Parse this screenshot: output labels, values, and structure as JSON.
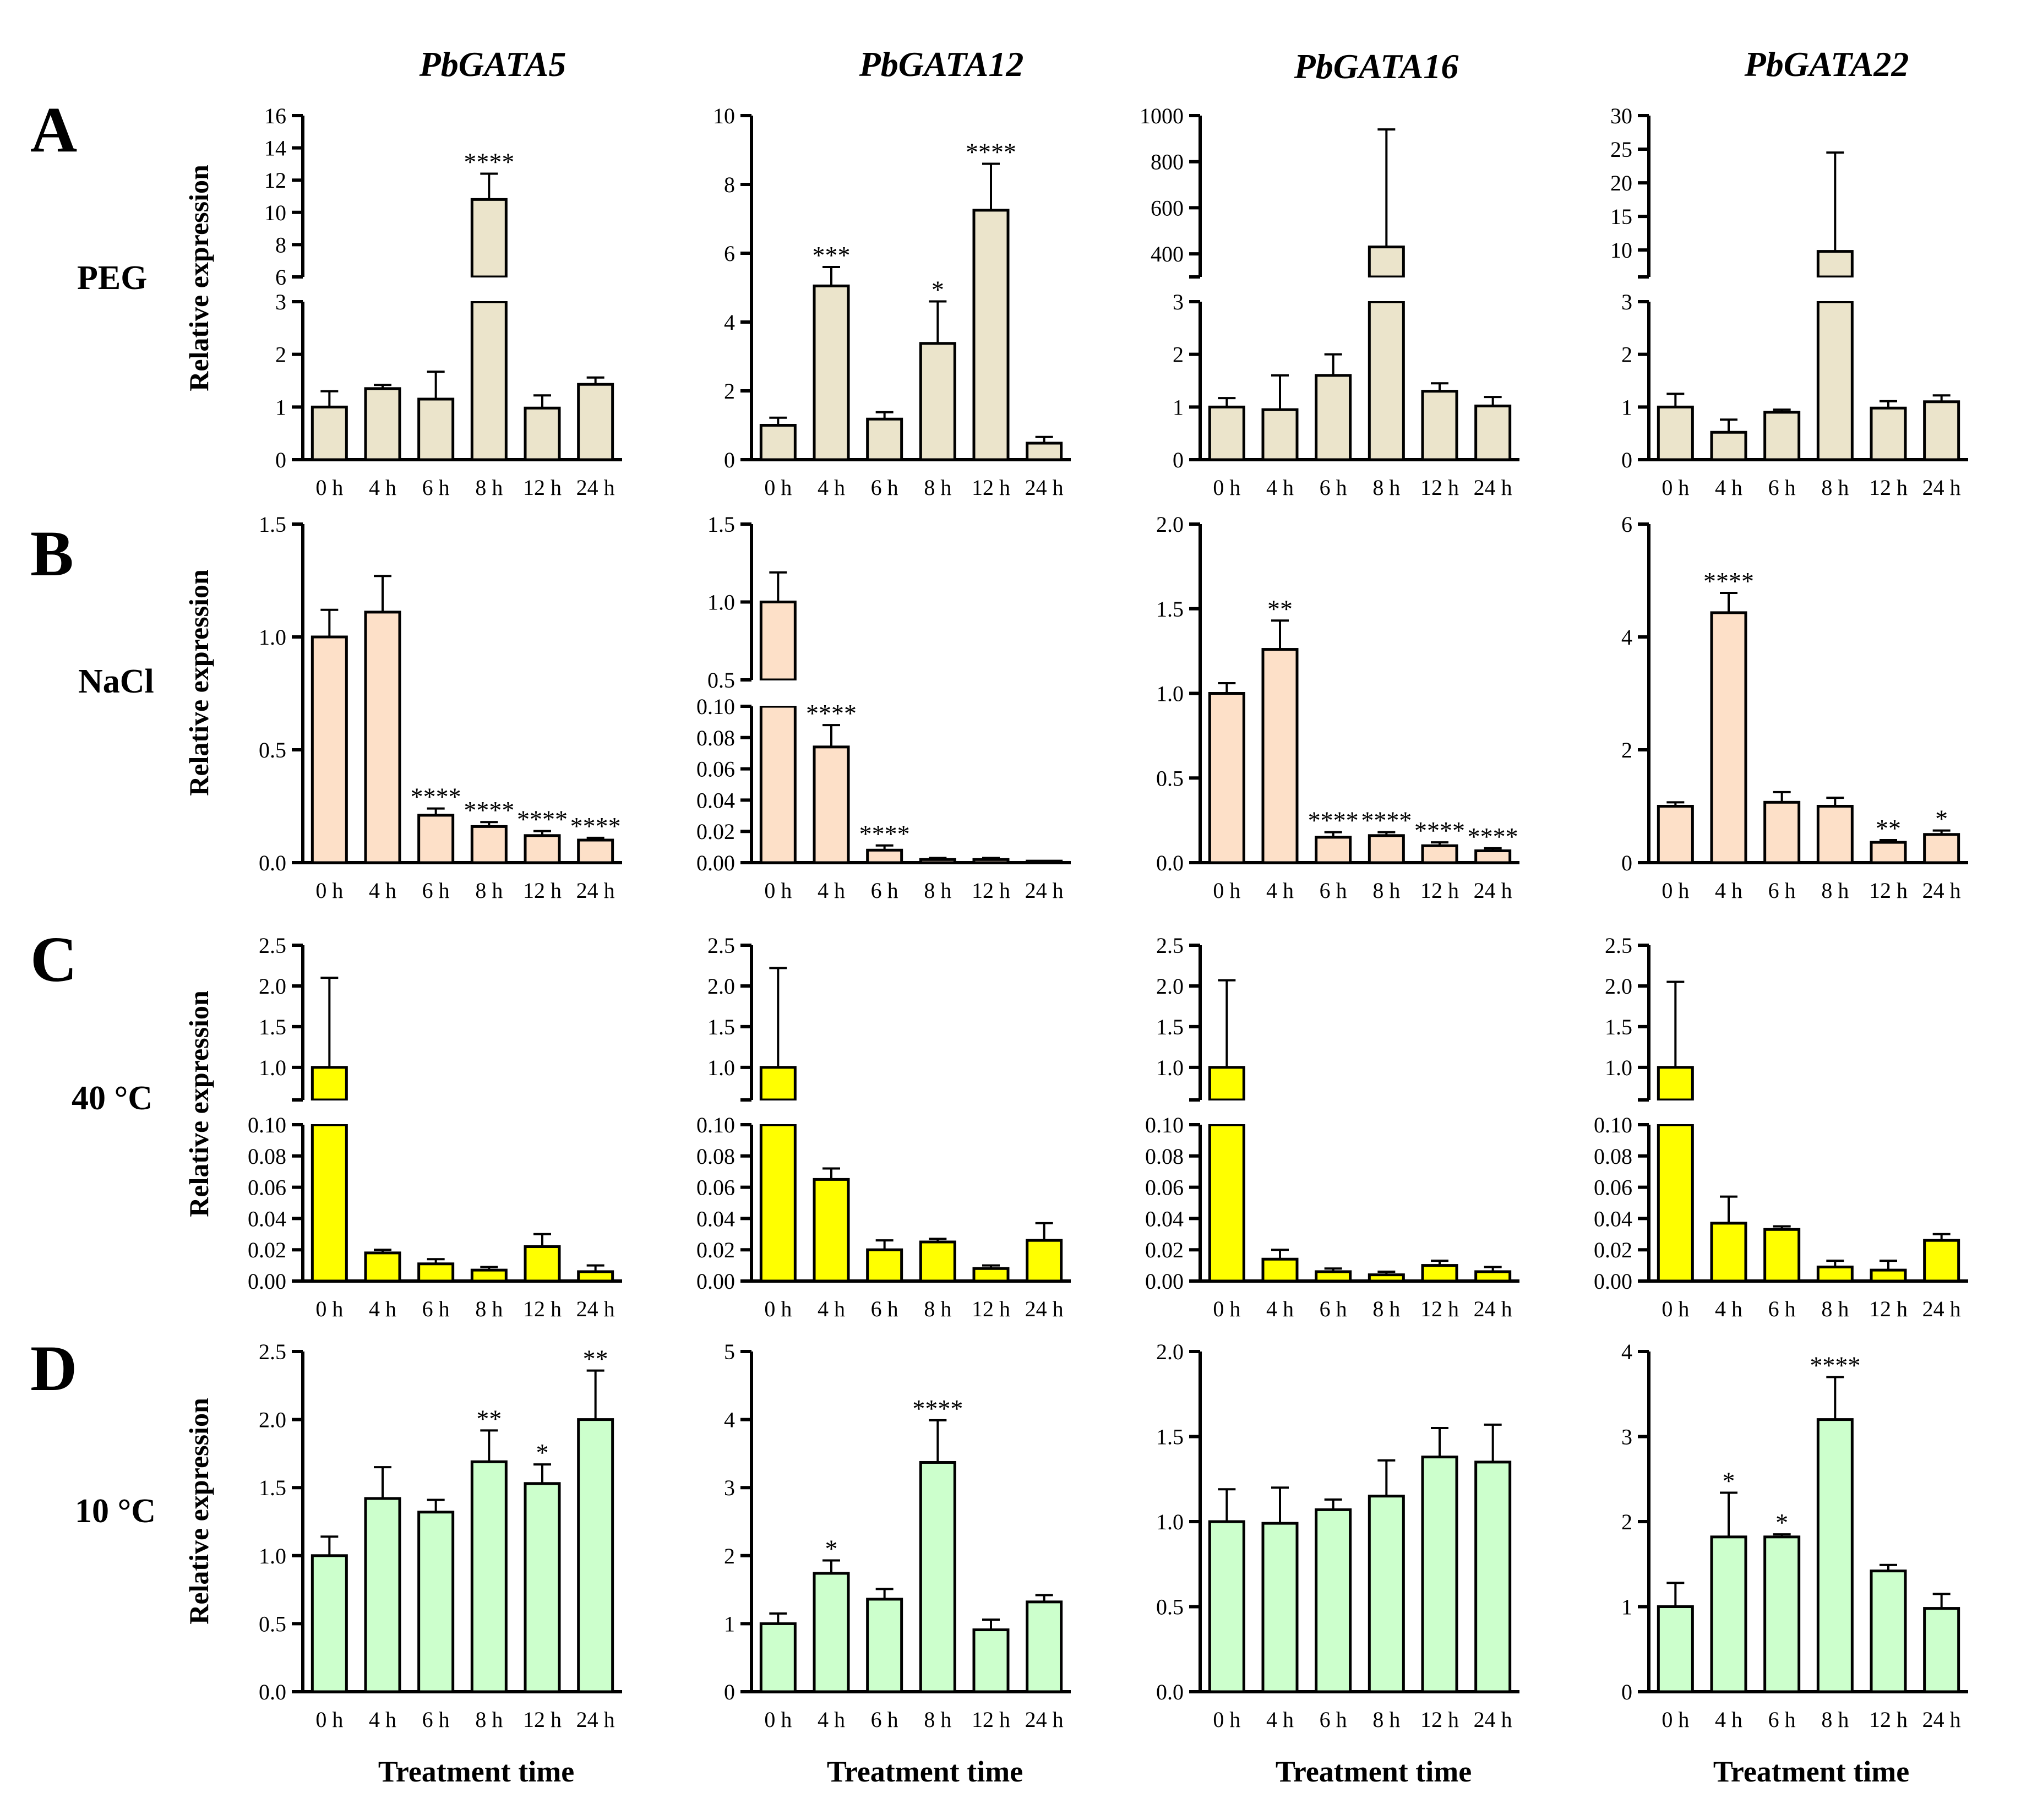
{
  "figure": {
    "genes": [
      "PbGATA5",
      "PbGATA12",
      "PbGATA16",
      "PbGATA22"
    ],
    "y_axis_label": "Relative expression",
    "x_axis_title": "Treatment time",
    "panel_letters": [
      "A",
      "B",
      "C",
      "D"
    ],
    "treatment_labels": [
      "PEG",
      "NaCl",
      "40 °C",
      "10 °C"
    ],
    "row_colors": [
      "#ebe4cb",
      "#fde0c8",
      "#ffff00",
      "#ccffcc"
    ]
  },
  "chart_data": [
    {
      "type": "bar",
      "row": "A",
      "treatment": "PEG",
      "gene": "PbGATA5",
      "categories": [
        "0 h",
        "4 h",
        "6 h",
        "8 h",
        "12 h",
        "24 h"
      ],
      "values": [
        1.0,
        1.35,
        1.15,
        10.8,
        0.98,
        1.43
      ],
      "errors": [
        0.3,
        0.07,
        0.52,
        1.6,
        0.24,
        0.13
      ],
      "significance": [
        "",
        "",
        "",
        "****",
        "",
        ""
      ],
      "axis_break": {
        "lower": [
          0,
          3
        ],
        "upper": [
          6,
          16
        ]
      },
      "lower_ticks": [
        0,
        1,
        2,
        3
      ],
      "upper_ticks": [
        6,
        8,
        10,
        12,
        14,
        16
      ]
    },
    {
      "type": "bar",
      "row": "A",
      "treatment": "PEG",
      "gene": "PbGATA12",
      "categories": [
        "0 h",
        "4 h",
        "6 h",
        "8 h",
        "12 h",
        "24 h"
      ],
      "values": [
        1.0,
        5.05,
        1.18,
        3.38,
        7.25,
        0.48
      ],
      "errors": [
        0.22,
        0.55,
        0.2,
        1.22,
        1.35,
        0.18
      ],
      "significance": [
        "",
        "***",
        "",
        "*",
        "****",
        ""
      ],
      "ylim": [
        0,
        10
      ],
      "ticks": [
        0,
        2,
        4,
        6,
        8,
        10
      ]
    },
    {
      "type": "bar",
      "row": "A",
      "treatment": "PEG",
      "gene": "PbGATA16",
      "categories": [
        "0 h",
        "4 h",
        "6 h",
        "8 h",
        "12 h",
        "24 h"
      ],
      "values": [
        1.0,
        0.95,
        1.6,
        430,
        1.3,
        1.02
      ],
      "errors": [
        0.17,
        0.65,
        0.4,
        510,
        0.15,
        0.17
      ],
      "significance": [
        "",
        "",
        "",
        "",
        "",
        ""
      ],
      "axis_break": {
        "lower": [
          0,
          3
        ],
        "upper": [
          300,
          1000
        ]
      },
      "lower_ticks": [
        0,
        1,
        2,
        3
      ],
      "upper_ticks": [
        400,
        600,
        800,
        1000
      ]
    },
    {
      "type": "bar",
      "row": "A",
      "treatment": "PEG",
      "gene": "PbGATA22",
      "categories": [
        "0 h",
        "4 h",
        "6 h",
        "8 h",
        "12 h",
        "24 h"
      ],
      "values": [
        1.0,
        0.52,
        0.9,
        9.8,
        0.98,
        1.1
      ],
      "errors": [
        0.25,
        0.24,
        0.05,
        14.7,
        0.13,
        0.12
      ],
      "significance": [
        "",
        "",
        "",
        "",
        "",
        ""
      ],
      "axis_break": {
        "lower": [
          0,
          3
        ],
        "upper": [
          6,
          30
        ]
      },
      "lower_ticks": [
        0,
        1,
        2,
        3
      ],
      "upper_ticks": [
        10,
        15,
        20,
        25,
        30
      ]
    },
    {
      "type": "bar",
      "row": "B",
      "treatment": "NaCl",
      "gene": "PbGATA5",
      "categories": [
        "0 h",
        "4 h",
        "6 h",
        "8 h",
        "12 h",
        "24 h"
      ],
      "values": [
        1.0,
        1.11,
        0.21,
        0.16,
        0.12,
        0.1
      ],
      "errors": [
        0.12,
        0.16,
        0.03,
        0.02,
        0.02,
        0.01
      ],
      "significance": [
        "",
        "",
        "****",
        "****",
        "****",
        "****"
      ],
      "ylim": [
        0,
        1.5
      ],
      "ticks": [
        "0.0",
        "0.5",
        "1.0",
        "1.5"
      ]
    },
    {
      "type": "bar",
      "row": "B",
      "treatment": "NaCl",
      "gene": "PbGATA12",
      "categories": [
        "0 h",
        "4 h",
        "6 h",
        "8 h",
        "12 h",
        "24 h"
      ],
      "values": [
        1.0,
        0.074,
        0.008,
        0.002,
        0.002,
        0.001
      ],
      "errors": [
        0.19,
        0.014,
        0.003,
        0.001,
        0.001,
        0.0005
      ],
      "significance": [
        "",
        "****",
        "****",
        "",
        "",
        ""
      ],
      "axis_break": {
        "lower": [
          0,
          0.1
        ],
        "upper": [
          0.5,
          1.5
        ]
      },
      "lower_ticks": [
        "0.00",
        "0.02",
        "0.04",
        "0.06",
        "0.08",
        "0.10"
      ],
      "upper_ticks": [
        "0.5",
        "1.0",
        "1.5"
      ]
    },
    {
      "type": "bar",
      "row": "B",
      "treatment": "NaCl",
      "gene": "PbGATA16",
      "categories": [
        "0 h",
        "4 h",
        "6 h",
        "8 h",
        "12 h",
        "24 h"
      ],
      "values": [
        1.0,
        1.26,
        0.15,
        0.16,
        0.1,
        0.07
      ],
      "errors": [
        0.06,
        0.17,
        0.03,
        0.02,
        0.02,
        0.015
      ],
      "significance": [
        "",
        "**",
        "****",
        "****",
        "****",
        "****"
      ],
      "ylim": [
        0,
        2.0
      ],
      "ticks": [
        "0.0",
        "0.5",
        "1.0",
        "1.5",
        "2.0"
      ]
    },
    {
      "type": "bar",
      "row": "B",
      "treatment": "NaCl",
      "gene": "PbGATA22",
      "categories": [
        "0 h",
        "4 h",
        "6 h",
        "8 h",
        "12 h",
        "24 h"
      ],
      "values": [
        1.0,
        4.43,
        1.07,
        1.0,
        0.36,
        0.5
      ],
      "errors": [
        0.07,
        0.35,
        0.18,
        0.15,
        0.04,
        0.07
      ],
      "significance": [
        "",
        "****",
        "",
        "",
        "**",
        "*"
      ],
      "ylim": [
        0,
        6
      ],
      "ticks": [
        "0",
        "2",
        "4",
        "6"
      ]
    },
    {
      "type": "bar",
      "row": "C",
      "treatment": "40 °C",
      "gene": "PbGATA5",
      "categories": [
        "0 h",
        "4 h",
        "6 h",
        "8 h",
        "12 h",
        "24 h"
      ],
      "values": [
        1.0,
        0.018,
        0.011,
        0.007,
        0.022,
        0.006
      ],
      "errors": [
        1.1,
        0.002,
        0.003,
        0.002,
        0.008,
        0.004
      ],
      "significance": [
        "",
        "",
        "",
        "",
        "",
        ""
      ],
      "axis_break": {
        "lower": [
          0,
          0.1
        ],
        "upper": [
          0.6,
          2.5
        ]
      },
      "lower_ticks": [
        "0.00",
        "0.02",
        "0.04",
        "0.06",
        "0.08",
        "0.10"
      ],
      "upper_ticks": [
        "1.0",
        "1.5",
        "2.0",
        "2.5"
      ]
    },
    {
      "type": "bar",
      "row": "C",
      "treatment": "40 °C",
      "gene": "PbGATA12",
      "categories": [
        "0 h",
        "4 h",
        "6 h",
        "8 h",
        "12 h",
        "24 h"
      ],
      "values": [
        1.0,
        0.065,
        0.02,
        0.025,
        0.008,
        0.026
      ],
      "errors": [
        1.22,
        0.007,
        0.006,
        0.002,
        0.002,
        0.011
      ],
      "significance": [
        "",
        "",
        "",
        "",
        "",
        ""
      ],
      "axis_break": {
        "lower": [
          0,
          0.1
        ],
        "upper": [
          0.6,
          2.5
        ]
      },
      "lower_ticks": [
        "0.00",
        "0.02",
        "0.04",
        "0.06",
        "0.08",
        "0.10"
      ],
      "upper_ticks": [
        "1.0",
        "1.5",
        "2.0",
        "2.5"
      ]
    },
    {
      "type": "bar",
      "row": "C",
      "treatment": "40 °C",
      "gene": "PbGATA16",
      "categories": [
        "0 h",
        "4 h",
        "6 h",
        "8 h",
        "12 h",
        "24 h"
      ],
      "values": [
        1.0,
        0.014,
        0.006,
        0.004,
        0.01,
        0.006
      ],
      "errors": [
        1.07,
        0.006,
        0.002,
        0.002,
        0.003,
        0.003
      ],
      "significance": [
        "",
        "",
        "",
        "",
        "",
        ""
      ],
      "axis_break": {
        "lower": [
          0,
          0.1
        ],
        "upper": [
          0.6,
          2.5
        ]
      },
      "lower_ticks": [
        "0.00",
        "0.02",
        "0.04",
        "0.06",
        "0.08",
        "0.10"
      ],
      "upper_ticks": [
        "1.0",
        "1.5",
        "2.0",
        "2.5"
      ]
    },
    {
      "type": "bar",
      "row": "C",
      "treatment": "40 °C",
      "gene": "PbGATA22",
      "categories": [
        "0 h",
        "4 h",
        "6 h",
        "8 h",
        "12 h",
        "24 h"
      ],
      "values": [
        1.0,
        0.037,
        0.033,
        0.009,
        0.007,
        0.026
      ],
      "errors": [
        1.05,
        0.017,
        0.002,
        0.004,
        0.006,
        0.004
      ],
      "significance": [
        "",
        "",
        "",
        "",
        "",
        ""
      ],
      "axis_break": {
        "lower": [
          0,
          0.1
        ],
        "upper": [
          0.6,
          2.5
        ]
      },
      "lower_ticks": [
        "0.00",
        "0.02",
        "0.04",
        "0.06",
        "0.08",
        "0.10"
      ],
      "upper_ticks": [
        "1.0",
        "1.5",
        "2.0",
        "2.5"
      ]
    },
    {
      "type": "bar",
      "row": "D",
      "treatment": "10 °C",
      "gene": "PbGATA5",
      "categories": [
        "0 h",
        "4 h",
        "6 h",
        "8 h",
        "12 h",
        "24 h"
      ],
      "values": [
        1.0,
        1.42,
        1.32,
        1.69,
        1.53,
        2.0
      ],
      "errors": [
        0.14,
        0.23,
        0.09,
        0.23,
        0.14,
        0.36
      ],
      "significance": [
        "",
        "",
        "",
        "**",
        "*",
        "**"
      ],
      "ylim": [
        0,
        2.5
      ],
      "ticks": [
        "0.0",
        "0.5",
        "1.0",
        "1.5",
        "2.0",
        "2.5"
      ]
    },
    {
      "type": "bar",
      "row": "D",
      "treatment": "10 °C",
      "gene": "PbGATA12",
      "categories": [
        "0 h",
        "4 h",
        "6 h",
        "8 h",
        "12 h",
        "24 h"
      ],
      "values": [
        1.0,
        1.74,
        1.36,
        3.37,
        0.91,
        1.32
      ],
      "errors": [
        0.15,
        0.19,
        0.15,
        0.62,
        0.15,
        0.1
      ],
      "significance": [
        "",
        "*",
        "",
        "****",
        "",
        ""
      ],
      "ylim": [
        0,
        5
      ],
      "ticks": [
        "0",
        "1",
        "2",
        "3",
        "4",
        "5"
      ]
    },
    {
      "type": "bar",
      "row": "D",
      "treatment": "10 °C",
      "gene": "PbGATA16",
      "categories": [
        "0 h",
        "4 h",
        "6 h",
        "8 h",
        "12 h",
        "24 h"
      ],
      "values": [
        1.0,
        0.99,
        1.07,
        1.15,
        1.38,
        1.35
      ],
      "errors": [
        0.19,
        0.21,
        0.06,
        0.21,
        0.17,
        0.22
      ],
      "significance": [
        "",
        "",
        "",
        "",
        "",
        ""
      ],
      "ylim": [
        0,
        2.0
      ],
      "ticks": [
        "0.0",
        "0.5",
        "1.0",
        "1.5",
        "2.0"
      ]
    },
    {
      "type": "bar",
      "row": "D",
      "treatment": "10 °C",
      "gene": "PbGATA22",
      "categories": [
        "0 h",
        "4 h",
        "6 h",
        "8 h",
        "12 h",
        "24 h"
      ],
      "values": [
        1.0,
        1.82,
        1.82,
        3.2,
        1.42,
        0.98
      ],
      "errors": [
        0.28,
        0.52,
        0.03,
        0.5,
        0.07,
        0.17
      ],
      "significance": [
        "",
        "*",
        "*",
        "****",
        "",
        ""
      ],
      "ylim": [
        0,
        4
      ],
      "ticks": [
        "0",
        "1",
        "2",
        "3",
        "4"
      ]
    }
  ]
}
